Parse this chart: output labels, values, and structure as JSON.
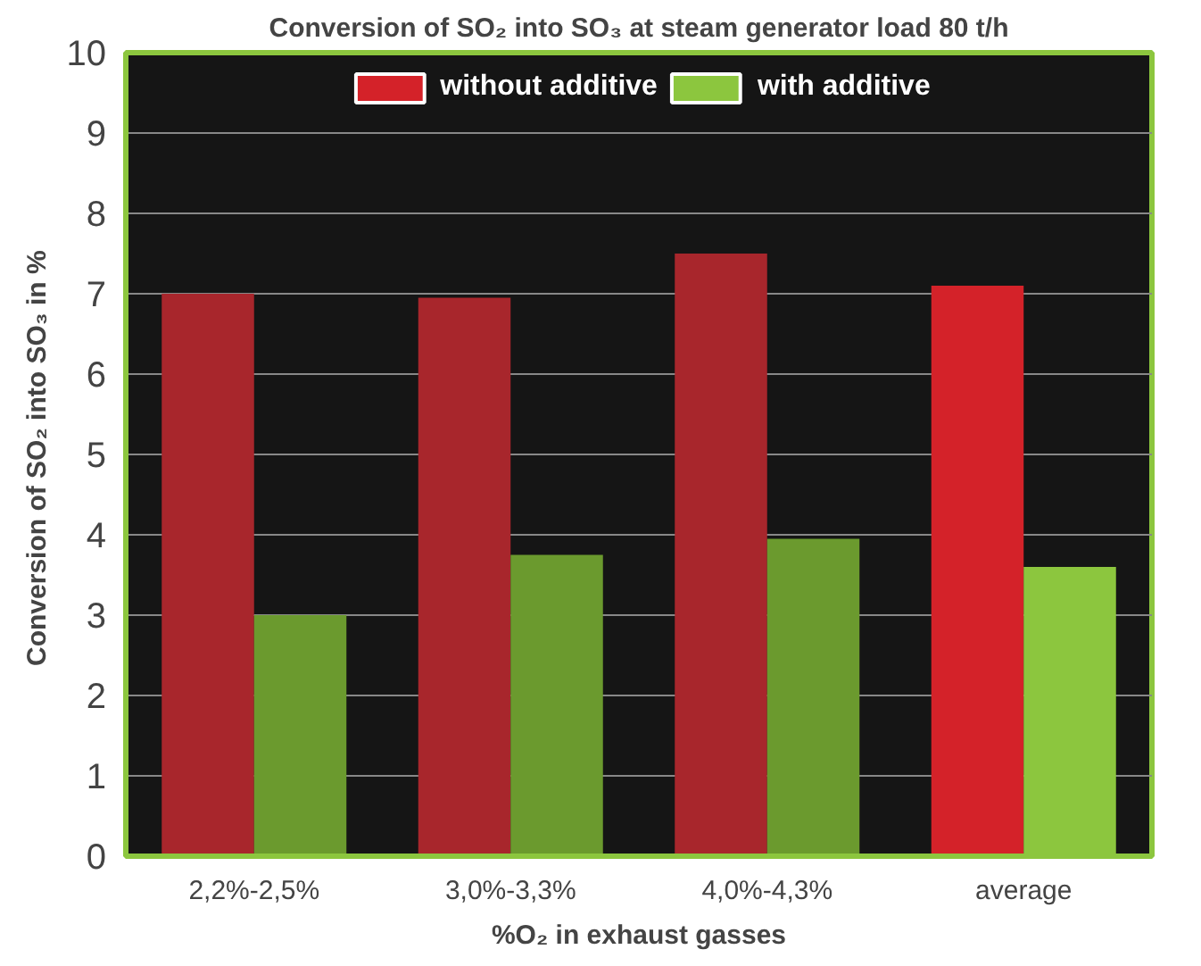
{
  "chart_data": {
    "type": "bar",
    "title": "Conversion of SO₂ into SO₃ at steam generator load 80 t/h",
    "xlabel": "%O₂ in exhaust gasses",
    "ylabel": "Conversion of  SO₂ into SO₃ in %",
    "categories": [
      "2,2%-2,5%",
      "3,0%-3,3%",
      "4,0%-4,3%",
      "average"
    ],
    "series": [
      {
        "name": "without additive",
        "color": "#d42229",
        "colors": [
          "#a8262c",
          "#a8262c",
          "#a8262c",
          "#d42229"
        ],
        "values": [
          7.0,
          6.95,
          7.5,
          7.1
        ]
      },
      {
        "name": "with additive",
        "color": "#8cc63e",
        "colors": [
          "#6b9a2e",
          "#6b9a2e",
          "#6b9a2e",
          "#8cc63e"
        ],
        "values": [
          3.0,
          3.75,
          3.95,
          3.6
        ]
      }
    ],
    "ylim": [
      0,
      10
    ],
    "yticks": [
      0,
      1,
      2,
      3,
      4,
      5,
      6,
      7,
      8,
      9,
      10
    ],
    "grid": "y",
    "legend": "top"
  }
}
